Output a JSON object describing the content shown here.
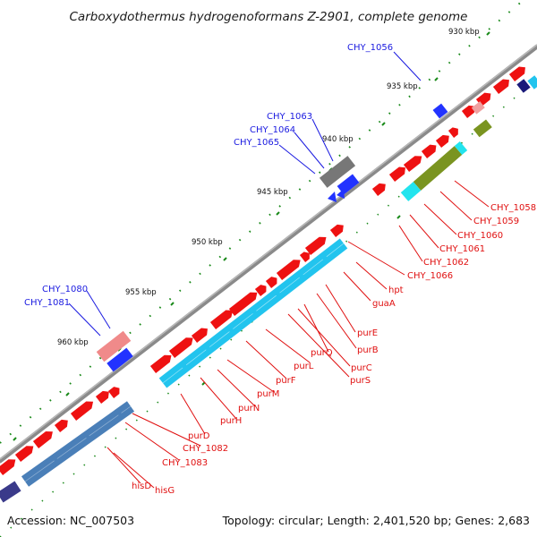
{
  "title": "Carboxydothermus hydrogenoformans Z-2901, complete genome",
  "footer": {
    "accession": "Accession: NC_007503",
    "summary": "Topology: circular; Length: 2,401,520 bp; Genes: 2,683"
  },
  "ticks": [
    "930 kbp",
    "935 kbp",
    "940 kbp",
    "945 kbp",
    "950 kbp",
    "955 kbp",
    "960 kbp"
  ],
  "colors": {
    "backbone": "#8a8a8a",
    "forward_gene": "#ee1111",
    "reverse_gene": "#2233ff",
    "operon_cyan": "#22c4ee",
    "operon_steel": "#4a7fb8",
    "operon_olive": "#7a9420",
    "tick_green": "#1a8a1a",
    "label_red": "#e01010",
    "label_blue": "#1a1ae0"
  },
  "gene_labels": [
    {
      "name": "CHY_1056",
      "strand": "reverse"
    },
    {
      "name": "CHY_1063",
      "strand": "reverse"
    },
    {
      "name": "CHY_1064",
      "strand": "reverse"
    },
    {
      "name": "CHY_1065",
      "strand": "reverse"
    },
    {
      "name": "CHY_1080",
      "strand": "reverse"
    },
    {
      "name": "CHY_1081",
      "strand": "reverse"
    },
    {
      "name": "CHY_1058",
      "strand": "forward"
    },
    {
      "name": "CHY_1059",
      "strand": "forward"
    },
    {
      "name": "CHY_1060",
      "strand": "forward"
    },
    {
      "name": "CHY_1061",
      "strand": "forward"
    },
    {
      "name": "CHY_1062",
      "strand": "forward"
    },
    {
      "name": "CHY_1066",
      "strand": "forward"
    },
    {
      "name": "hpt",
      "strand": "forward"
    },
    {
      "name": "guaA",
      "strand": "forward"
    },
    {
      "name": "purE",
      "strand": "forward"
    },
    {
      "name": "purB",
      "strand": "forward"
    },
    {
      "name": "purQ",
      "strand": "forward"
    },
    {
      "name": "purC",
      "strand": "forward"
    },
    {
      "name": "purS",
      "strand": "forward"
    },
    {
      "name": "purL",
      "strand": "forward"
    },
    {
      "name": "purF",
      "strand": "forward"
    },
    {
      "name": "purM",
      "strand": "forward"
    },
    {
      "name": "purN",
      "strand": "forward"
    },
    {
      "name": "purH",
      "strand": "forward"
    },
    {
      "name": "purD",
      "strand": "forward"
    },
    {
      "name": "CHY_1082",
      "strand": "forward"
    },
    {
      "name": "CHY_1083",
      "strand": "forward"
    },
    {
      "name": "hisD",
      "strand": "forward"
    },
    {
      "name": "hisG",
      "strand": "forward"
    }
  ]
}
